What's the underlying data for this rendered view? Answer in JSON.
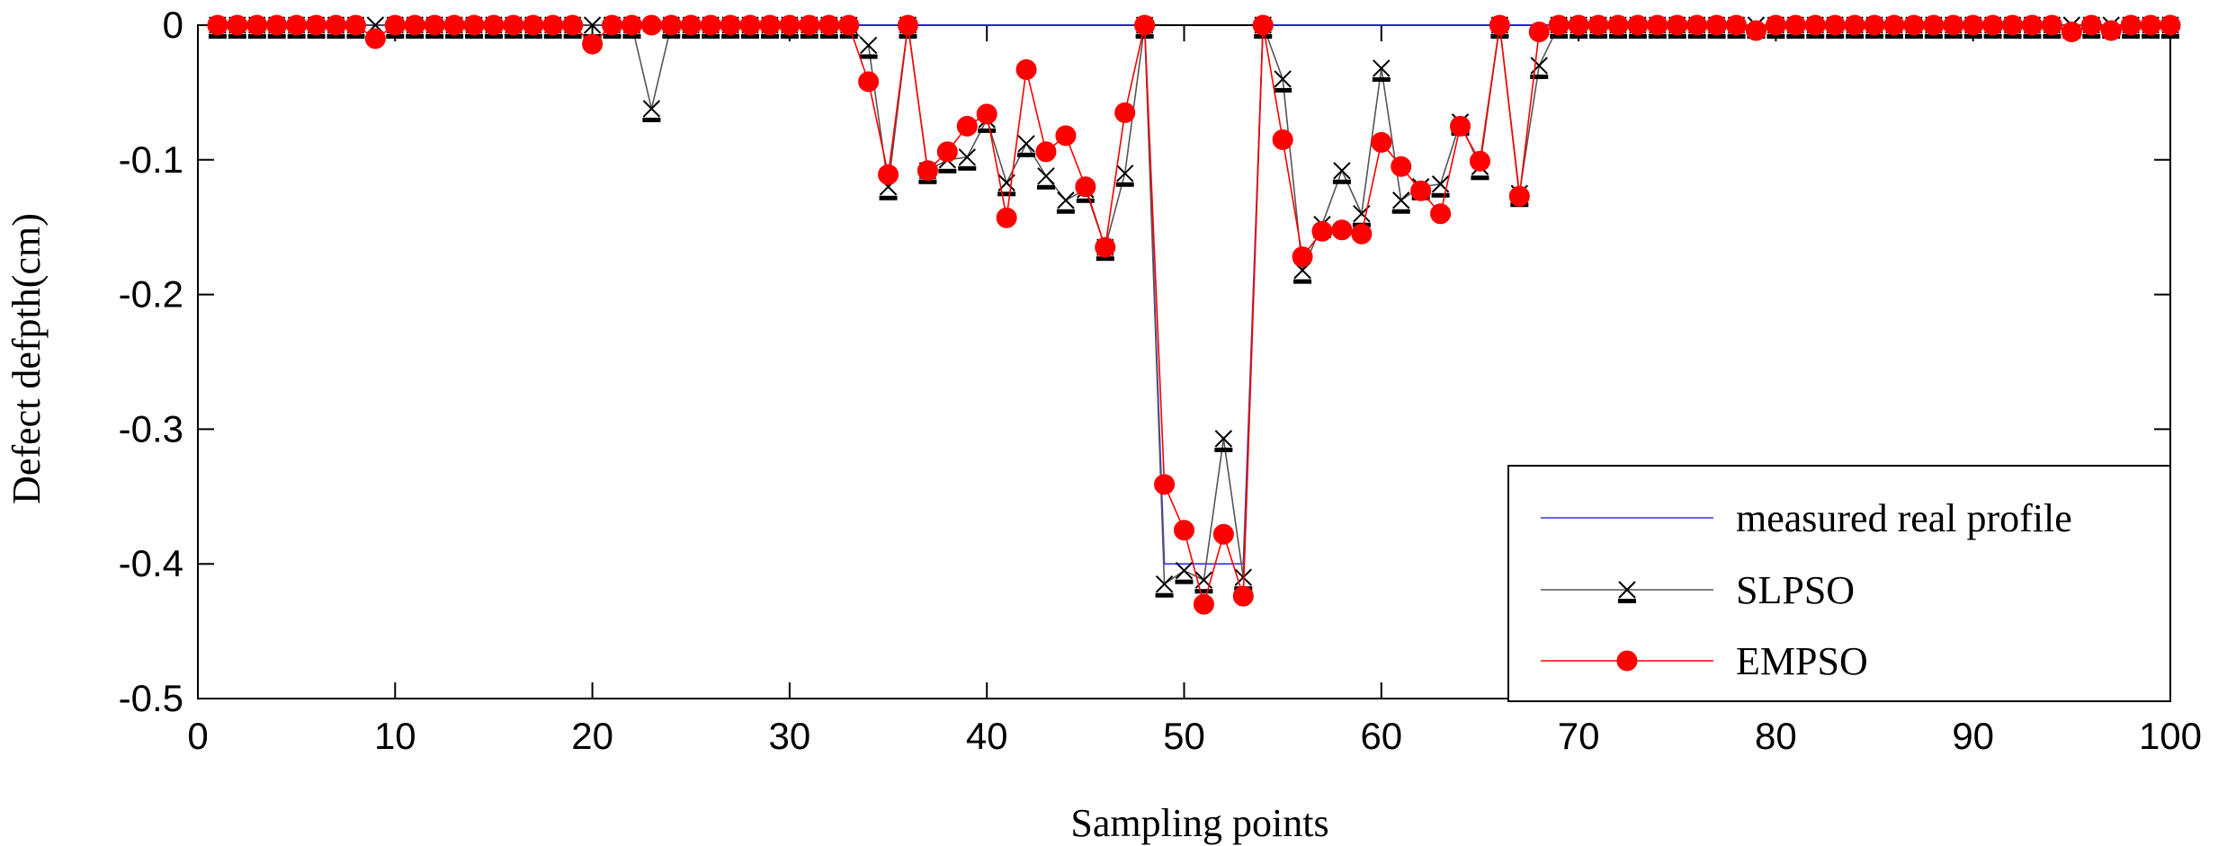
{
  "chart_data": {
    "type": "line",
    "title": "",
    "xlabel": "Sampling points",
    "ylabel": "Defect defpth(cm)",
    "xlim": [
      0,
      100
    ],
    "ylim": [
      -0.5,
      0
    ],
    "xticks": [
      0,
      10,
      20,
      30,
      40,
      50,
      60,
      70,
      80,
      90,
      100
    ],
    "yticks": [
      0,
      -0.1,
      -0.2,
      -0.3,
      -0.4,
      -0.5
    ],
    "xtick_labels": [
      "0",
      "10",
      "20",
      "30",
      "40",
      "50",
      "60",
      "70",
      "80",
      "90",
      "100"
    ],
    "ytick_labels": [
      "0",
      "-0.1",
      "-0.2",
      "-0.3",
      "-0.4",
      "-0.5"
    ],
    "grid": false,
    "legend_position": "bottom-right",
    "x": [
      1,
      2,
      3,
      4,
      5,
      6,
      7,
      8,
      9,
      10,
      11,
      12,
      13,
      14,
      15,
      16,
      17,
      18,
      19,
      20,
      21,
      22,
      23,
      24,
      25,
      26,
      27,
      28,
      29,
      30,
      31,
      32,
      33,
      34,
      35,
      36,
      37,
      38,
      39,
      40,
      41,
      42,
      43,
      44,
      45,
      46,
      47,
      48,
      49,
      50,
      51,
      52,
      53,
      54,
      55,
      56,
      57,
      58,
      59,
      60,
      61,
      62,
      63,
      64,
      65,
      66,
      67,
      68,
      69,
      70,
      71,
      72,
      73,
      74,
      75,
      76,
      77,
      78,
      79,
      80,
      81,
      82,
      83,
      84,
      85,
      86,
      87,
      88,
      89,
      90,
      91,
      92,
      93,
      94,
      95,
      96,
      97,
      98,
      99,
      100
    ],
    "series": [
      {
        "name": "measured real profile",
        "color": "#3333ff",
        "marker": "none",
        "values": [
          0,
          0,
          0,
          0,
          0,
          0,
          0,
          0,
          0,
          0,
          0,
          0,
          0,
          0,
          0,
          0,
          0,
          0,
          0,
          0,
          0,
          0,
          0,
          0,
          0,
          0,
          0,
          0,
          0,
          0,
          0,
          0,
          0,
          0,
          0,
          0,
          0,
          0,
          0,
          0,
          0,
          0,
          0,
          0,
          0,
          0,
          0,
          0,
          -0.4,
          -0.4,
          -0.4,
          -0.4,
          -0.4,
          0,
          0,
          0,
          0,
          0,
          0,
          0,
          0,
          0,
          0,
          0,
          0,
          0,
          0,
          0,
          0,
          0,
          0,
          0,
          0,
          0,
          0,
          0,
          0,
          0,
          0,
          0,
          0,
          0,
          0,
          0,
          0,
          0,
          0,
          0,
          0,
          0,
          0,
          0,
          0,
          0,
          0,
          0,
          0,
          0,
          0,
          0
        ]
      },
      {
        "name": "SLPSO",
        "color": "#555555",
        "marker": "x",
        "values": [
          0,
          0,
          0,
          0,
          0,
          0,
          0,
          0,
          0,
          0,
          0,
          0,
          0,
          0,
          0,
          0,
          0,
          0,
          0,
          0,
          0,
          0,
          -0.062,
          0,
          0,
          0,
          0,
          0,
          0,
          0,
          0,
          0,
          0,
          -0.015,
          -0.12,
          0,
          -0.108,
          -0.1,
          -0.098,
          -0.07,
          -0.117,
          -0.088,
          -0.112,
          -0.13,
          -0.122,
          -0.165,
          -0.11,
          0,
          -0.415,
          -0.405,
          -0.412,
          -0.307,
          -0.41,
          0,
          -0.04,
          -0.182,
          -0.148,
          -0.108,
          -0.14,
          -0.032,
          -0.13,
          -0.12,
          -0.118,
          -0.072,
          -0.105,
          0,
          -0.125,
          -0.03,
          0,
          0,
          0,
          0,
          0,
          0,
          0,
          0,
          0,
          0,
          0,
          0,
          0,
          0,
          0,
          0,
          0,
          0,
          0,
          0,
          0,
          0,
          0,
          0,
          0,
          0,
          0,
          0,
          0,
          0,
          0,
          0
        ]
      },
      {
        "name": "EMPSO",
        "color": "#ff0000",
        "marker": "o",
        "values": [
          0,
          0,
          0,
          0,
          0,
          0,
          0,
          0,
          -0.01,
          0,
          0,
          0,
          0,
          0,
          0,
          0,
          0,
          0,
          0,
          -0.014,
          0,
          0,
          0,
          0,
          0,
          0,
          0,
          0,
          0,
          0,
          0,
          0,
          0,
          -0.042,
          -0.111,
          0,
          -0.108,
          -0.094,
          -0.075,
          -0.066,
          -0.143,
          -0.033,
          -0.094,
          -0.082,
          -0.12,
          -0.165,
          -0.065,
          0,
          -0.341,
          -0.375,
          -0.43,
          -0.378,
          -0.424,
          0,
          -0.085,
          -0.172,
          -0.153,
          -0.152,
          -0.155,
          -0.087,
          -0.105,
          -0.123,
          -0.14,
          -0.075,
          -0.101,
          0,
          -0.127,
          -0.005,
          0,
          0,
          0,
          0,
          0,
          0,
          0,
          0,
          0,
          0,
          -0.004,
          0,
          0,
          0,
          0,
          0,
          0,
          0,
          0,
          0,
          0,
          0,
          0,
          0,
          0,
          0,
          -0.005,
          0,
          -0.004,
          0,
          0,
          0
        ]
      }
    ]
  }
}
